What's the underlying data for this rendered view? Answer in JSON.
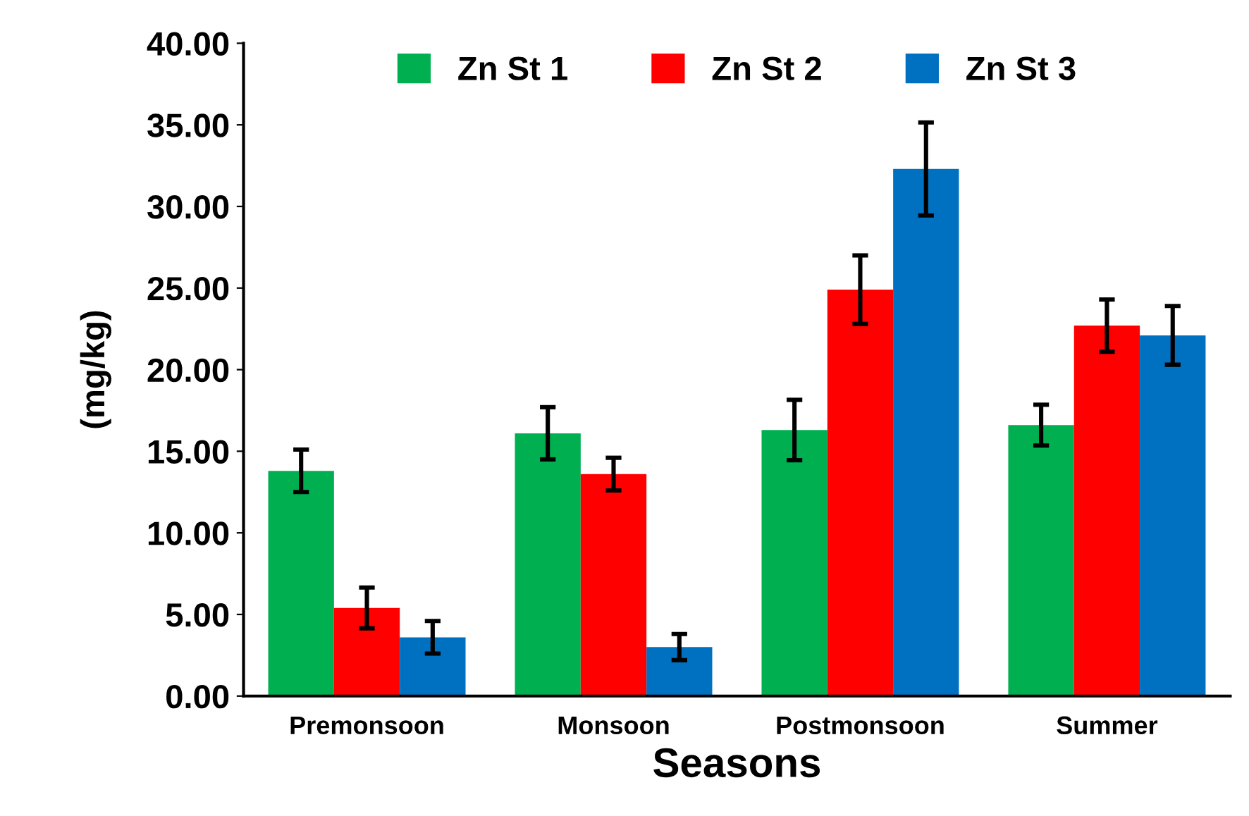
{
  "chart_data": {
    "type": "bar",
    "xlabel": "Seasons",
    "ylabel": "(mg/kg)",
    "categories": [
      "Premonsoon",
      "Monsoon",
      "Postmonsoon",
      "Summer"
    ],
    "series": [
      {
        "name": "Zn St 1",
        "color": "#00b050",
        "values": [
          13.8,
          16.1,
          16.3,
          16.6
        ],
        "errors": [
          1.3,
          1.6,
          1.85,
          1.25
        ]
      },
      {
        "name": "Zn St 2",
        "color": "#ff0000",
        "values": [
          5.4,
          13.6,
          24.9,
          22.7
        ],
        "errors": [
          1.25,
          1.0,
          2.1,
          1.6
        ]
      },
      {
        "name": "Zn St 3",
        "color": "#0070c0",
        "values": [
          3.6,
          3.0,
          32.3,
          22.1
        ],
        "errors": [
          1.0,
          0.8,
          2.85,
          1.8
        ]
      }
    ],
    "ylim": [
      0,
      40
    ],
    "yticks": [
      {
        "value": 0,
        "label": "0.00"
      },
      {
        "value": 5,
        "label": "5.00"
      },
      {
        "value": 10,
        "label": "10.00"
      },
      {
        "value": 15,
        "label": "15.00"
      },
      {
        "value": 20,
        "label": "20.00"
      },
      {
        "value": 25,
        "label": "25.00"
      },
      {
        "value": 30,
        "label": "30.00"
      },
      {
        "value": 35,
        "label": "35.00"
      },
      {
        "value": 40,
        "label": "40.00"
      }
    ],
    "grid": false,
    "legend": "top"
  }
}
